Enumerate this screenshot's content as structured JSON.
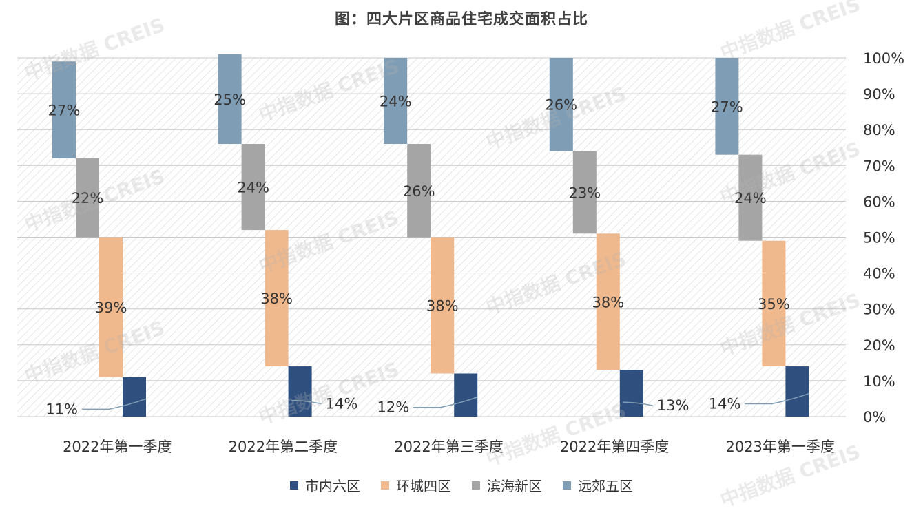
{
  "title": "图：四大片区商品住宅成交面积占比",
  "watermark": "中指数据 CREIS",
  "chart_data": {
    "type": "bar",
    "subtype": "waterfall-stacked",
    "title": "图：四大片区商品住宅成交面积占比",
    "categories": [
      "2022年第一季度",
      "2022年第二季度",
      "2022年第三季度",
      "2022年第四季度",
      "2023年第一季度"
    ],
    "series": [
      {
        "name": "市内六区",
        "color": "#2F4F7F",
        "values": [
          11,
          14,
          12,
          13,
          14
        ]
      },
      {
        "name": "环城四区",
        "color": "#F0B98D",
        "values": [
          39,
          38,
          38,
          38,
          35
        ]
      },
      {
        "name": "滨海新区",
        "color": "#A5A5A5",
        "values": [
          22,
          24,
          26,
          23,
          24
        ]
      },
      {
        "name": "远郊五区",
        "color": "#7F9DB5",
        "values": [
          27,
          25,
          24,
          26,
          27
        ]
      }
    ],
    "data_labels": [
      [
        "11%",
        "39%",
        "22%",
        "27%"
      ],
      [
        "14%",
        "38%",
        "24%",
        "25%"
      ],
      [
        "12%",
        "38%",
        "26%",
        "24%"
      ],
      [
        "13%",
        "38%",
        "23%",
        "26%"
      ],
      [
        "14%",
        "35%",
        "24%",
        "27%"
      ]
    ],
    "y_ticks": [
      "0%",
      "10%",
      "20%",
      "30%",
      "40%",
      "50%",
      "60%",
      "70%",
      "80%",
      "90%",
      "100%"
    ],
    "ylim": [
      0,
      100
    ],
    "y_axis_side": "right",
    "grid": true,
    "legend_position": "bottom"
  }
}
